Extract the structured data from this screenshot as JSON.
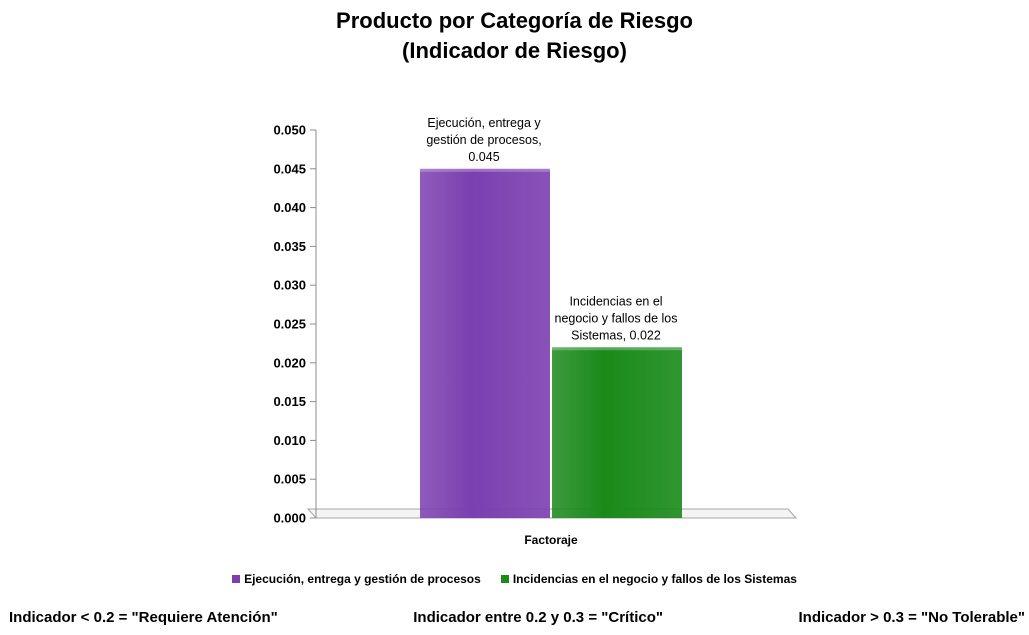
{
  "chart_data": {
    "type": "bar",
    "title_lines": [
      "Producto por Categoría de Riesgo",
      "(Indicador de Riesgo)"
    ],
    "categories": [
      "Factoraje"
    ],
    "series": [
      {
        "name": "Ejecución, entrega y gestión de procesos",
        "values": [
          0.045
        ],
        "color": "#7b3fb0",
        "label_lines": [
          "Ejecución, entrega y",
          "gestión de procesos,",
          "0.045"
        ]
      },
      {
        "name": "Incidencias en el negocio y fallos de los Sistemas",
        "values": [
          0.022
        ],
        "color": "#1a8a1a",
        "label_lines": [
          "Incidencias en el",
          "negocio y fallos de los",
          "Sistemas, 0.022"
        ]
      }
    ],
    "ylim": [
      0,
      0.05
    ],
    "yticks": [
      "0.000",
      "0.005",
      "0.010",
      "0.015",
      "0.020",
      "0.025",
      "0.030",
      "0.035",
      "0.040",
      "0.045",
      "0.050"
    ],
    "grid": false,
    "legend_position": "bottom"
  },
  "footer": {
    "left": "Indicador < 0.2  = \"Requiere Atención\"",
    "middle": "Indicador entre 0.2 y 0.3 = \"Crítico\"",
    "right": "Indicador > 0.3 = \"No Tolerable\""
  }
}
